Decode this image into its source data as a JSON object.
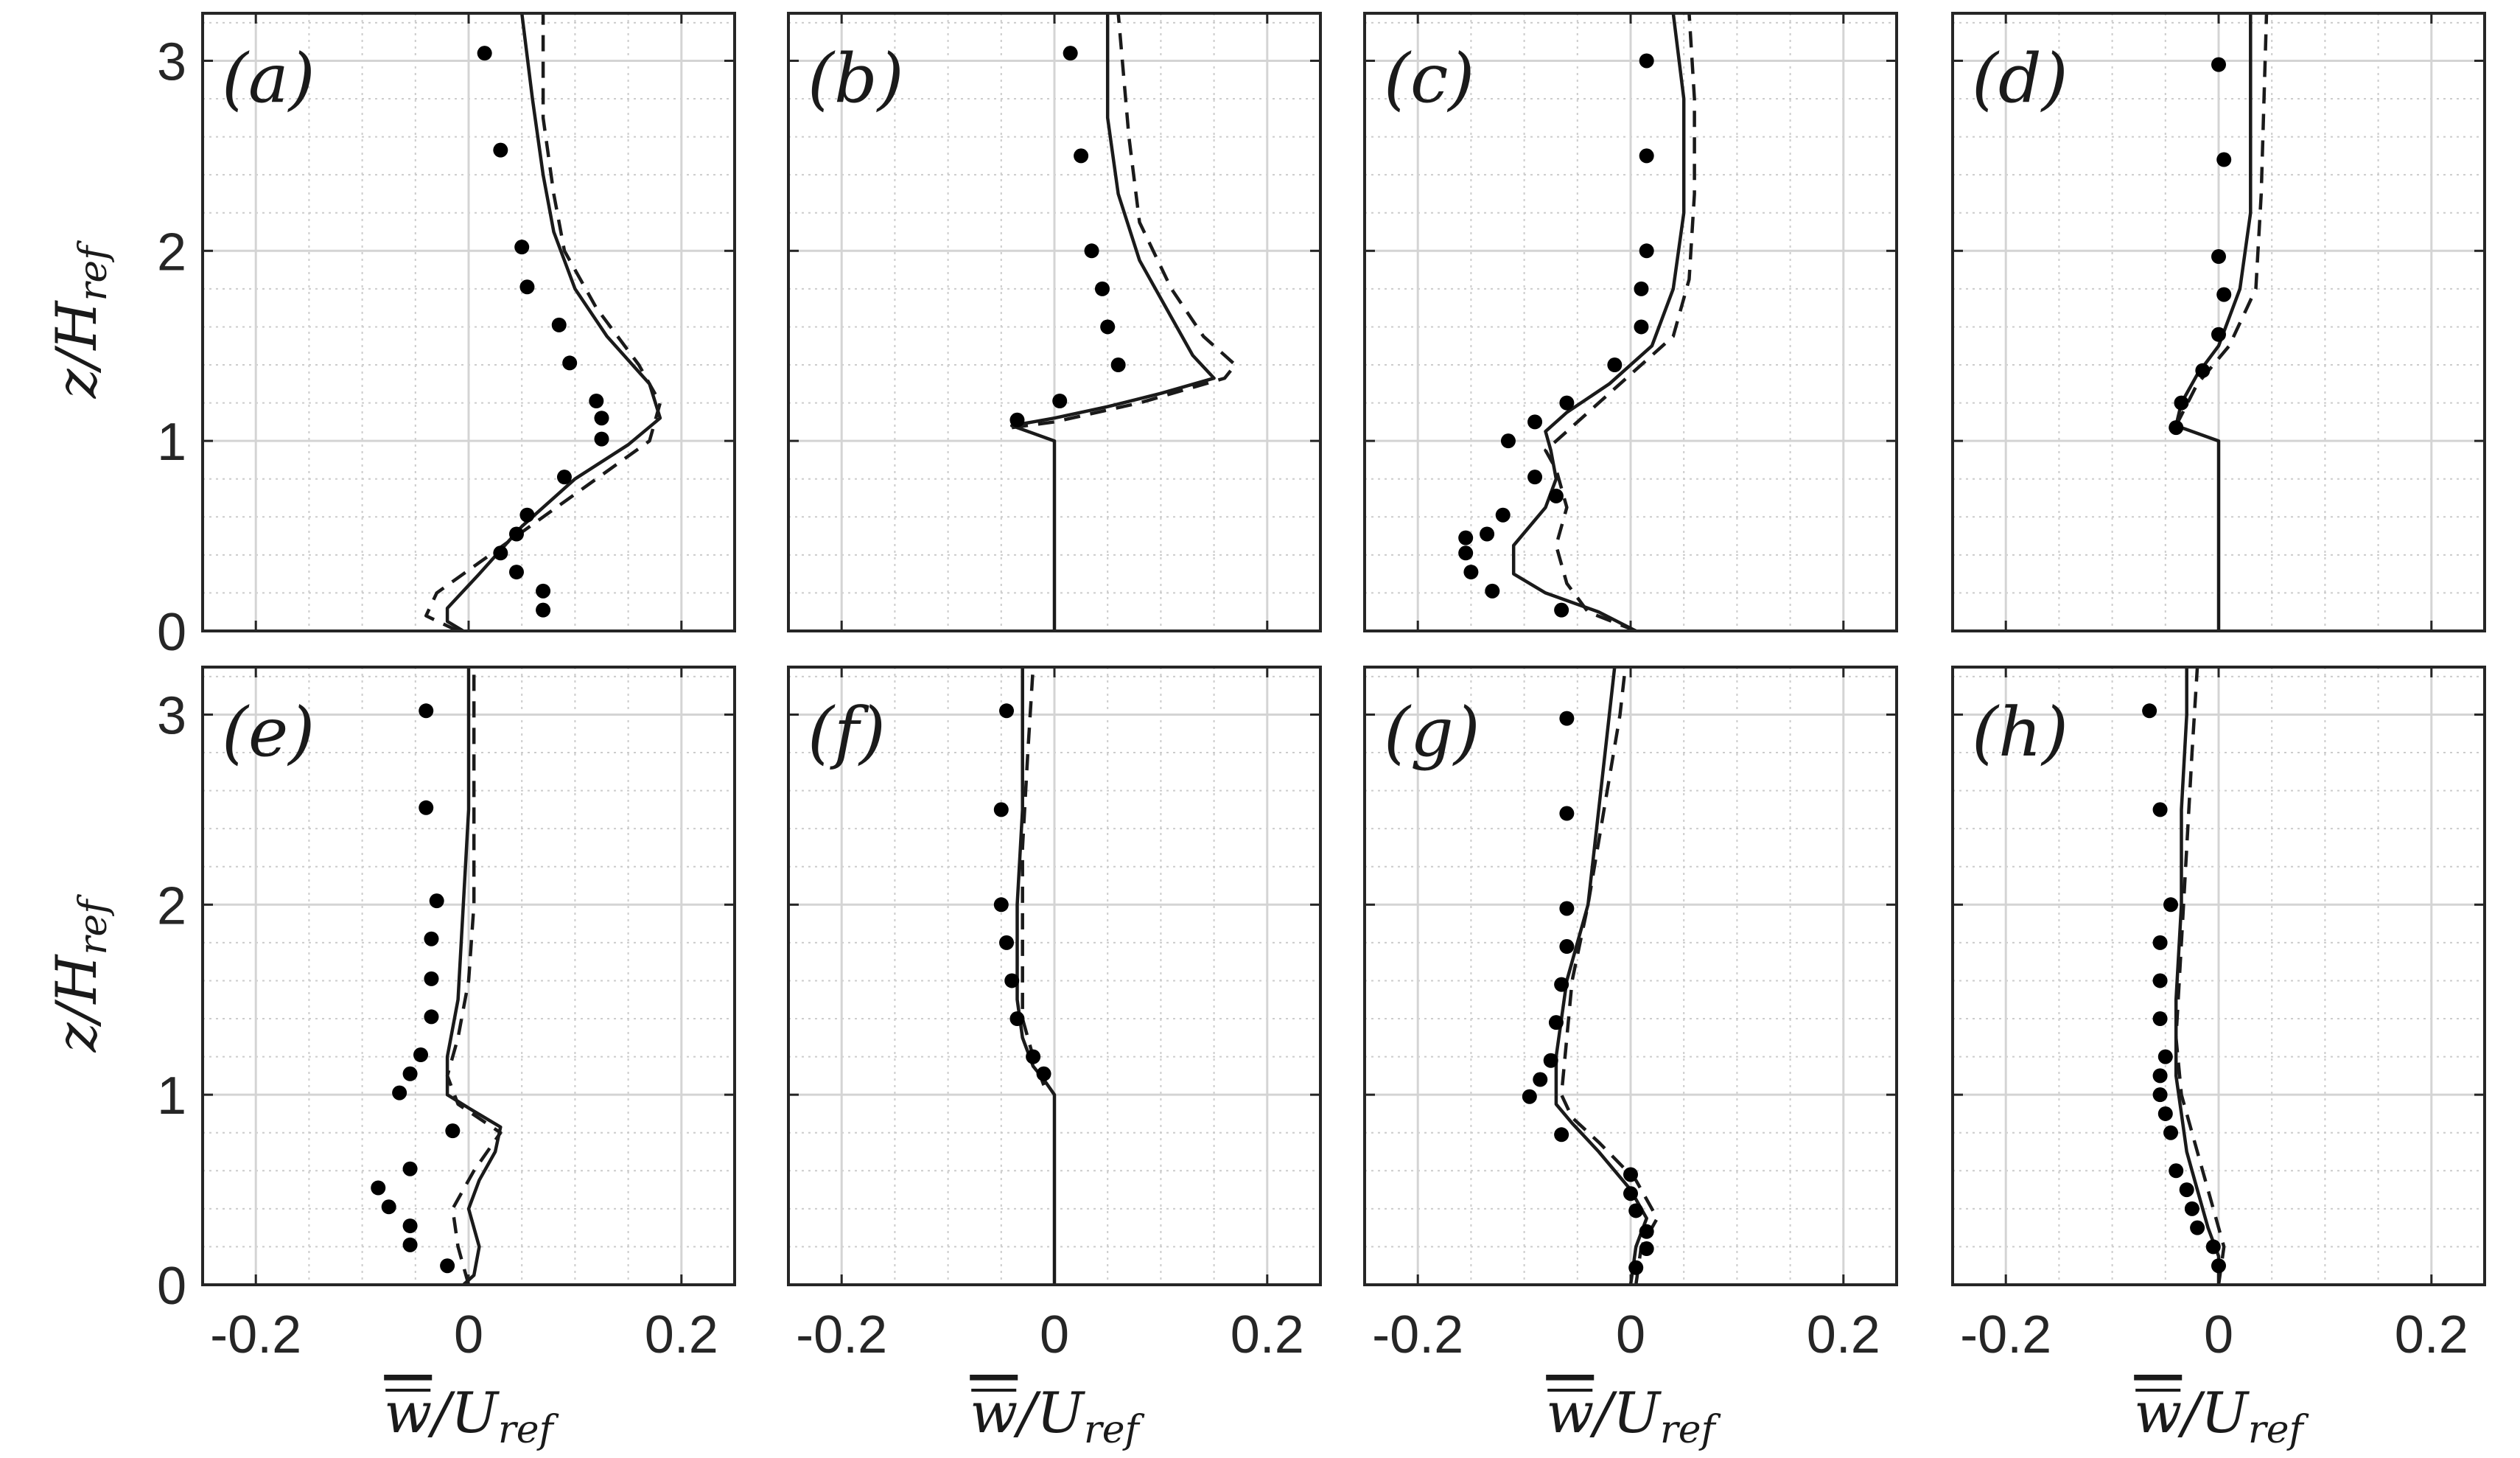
{
  "chart_data": {
    "type": "line",
    "layout": "2x4 grid of vertical profile plots",
    "xlim": [
      -0.25,
      0.25
    ],
    "ylim": [
      0,
      3.25
    ],
    "xticks": [
      "-0.2",
      "0",
      "0.2"
    ],
    "yticks": [
      "0",
      "1",
      "2",
      "3"
    ],
    "xlabel": {
      "main": "w/U",
      "sub": "ref"
    },
    "ylabel": {
      "main": "z/H",
      "sub": "ref"
    },
    "grid": true,
    "minor_grid": true,
    "styles": {
      "solid": "#1a1a1a",
      "dashed": "#1a1a1a",
      "points": "#000000"
    },
    "panels": [
      {
        "label": "(a)",
        "solid": [
          [
            -0.005,
            0
          ],
          [
            -0.02,
            0.05
          ],
          [
            -0.02,
            0.12
          ],
          [
            0.01,
            0.3
          ],
          [
            0.05,
            0.55
          ],
          [
            0.1,
            0.8
          ],
          [
            0.15,
            0.98
          ],
          [
            0.18,
            1.12
          ],
          [
            0.17,
            1.3
          ],
          [
            0.13,
            1.55
          ],
          [
            0.1,
            1.8
          ],
          [
            0.08,
            2.1
          ],
          [
            0.07,
            2.4
          ],
          [
            0.06,
            2.8
          ],
          [
            0.05,
            3.25
          ]
        ],
        "dashed": [
          [
            -0.01,
            0
          ],
          [
            -0.04,
            0.08
          ],
          [
            -0.03,
            0.2
          ],
          [
            0.02,
            0.4
          ],
          [
            0.07,
            0.6
          ],
          [
            0.12,
            0.8
          ],
          [
            0.17,
            1.0
          ],
          [
            0.18,
            1.2
          ],
          [
            0.16,
            1.4
          ],
          [
            0.12,
            1.7
          ],
          [
            0.09,
            2.0
          ],
          [
            0.08,
            2.3
          ],
          [
            0.07,
            2.7
          ],
          [
            0.07,
            3.25
          ]
        ],
        "points": [
          [
            0.015,
            3.04
          ],
          [
            0.03,
            2.53
          ],
          [
            0.05,
            2.02
          ],
          [
            0.055,
            1.81
          ],
          [
            0.085,
            1.61
          ],
          [
            0.095,
            1.41
          ],
          [
            0.12,
            1.21
          ],
          [
            0.125,
            1.12
          ],
          [
            0.125,
            1.01
          ],
          [
            0.09,
            0.81
          ],
          [
            0.055,
            0.61
          ],
          [
            0.045,
            0.51
          ],
          [
            0.03,
            0.41
          ],
          [
            0.045,
            0.31
          ],
          [
            0.07,
            0.21
          ],
          [
            0.07,
            0.11
          ]
        ]
      },
      {
        "label": "(b)",
        "solid": [
          [
            0,
            0
          ],
          [
            0,
            1.0
          ],
          [
            -0.04,
            1.08
          ],
          [
            0,
            1.12
          ],
          [
            0.05,
            1.18
          ],
          [
            0.1,
            1.25
          ],
          [
            0.15,
            1.33
          ],
          [
            0.13,
            1.45
          ],
          [
            0.11,
            1.65
          ],
          [
            0.08,
            1.95
          ],
          [
            0.06,
            2.3
          ],
          [
            0.05,
            2.7
          ],
          [
            0.05,
            3.25
          ]
        ],
        "dashed": [
          [
            -0.04,
            1.07
          ],
          [
            0,
            1.1
          ],
          [
            0.08,
            1.2
          ],
          [
            0.16,
            1.33
          ],
          [
            0.17,
            1.4
          ],
          [
            0.14,
            1.55
          ],
          [
            0.11,
            1.8
          ],
          [
            0.08,
            2.15
          ],
          [
            0.07,
            2.6
          ],
          [
            0.06,
            3.25
          ]
        ],
        "points": [
          [
            0.015,
            3.04
          ],
          [
            0.025,
            2.5
          ],
          [
            0.035,
            2.0
          ],
          [
            0.045,
            1.8
          ],
          [
            0.05,
            1.6
          ],
          [
            0.06,
            1.4
          ],
          [
            0.005,
            1.21
          ],
          [
            -0.035,
            1.11
          ]
        ]
      },
      {
        "label": "(c)",
        "solid": [
          [
            0.005,
            0
          ],
          [
            -0.03,
            0.1
          ],
          [
            -0.08,
            0.2
          ],
          [
            -0.11,
            0.3
          ],
          [
            -0.11,
            0.45
          ],
          [
            -0.08,
            0.65
          ],
          [
            -0.07,
            0.8
          ],
          [
            -0.075,
            0.95
          ],
          [
            -0.08,
            1.05
          ],
          [
            -0.06,
            1.15
          ],
          [
            -0.02,
            1.3
          ],
          [
            0.02,
            1.5
          ],
          [
            0.04,
            1.8
          ],
          [
            0.05,
            2.2
          ],
          [
            0.05,
            2.8
          ],
          [
            0.04,
            3.25
          ]
        ],
        "dashed": [
          [
            0.005,
            0
          ],
          [
            -0.04,
            0.1
          ],
          [
            -0.06,
            0.25
          ],
          [
            -0.07,
            0.45
          ],
          [
            -0.06,
            0.65
          ],
          [
            -0.07,
            0.85
          ],
          [
            -0.08,
            0.95
          ],
          [
            -0.06,
            1.05
          ],
          [
            -0.03,
            1.2
          ],
          [
            0.0,
            1.35
          ],
          [
            0.04,
            1.55
          ],
          [
            0.055,
            1.85
          ],
          [
            0.06,
            2.3
          ],
          [
            0.06,
            2.8
          ],
          [
            0.055,
            3.25
          ]
        ],
        "points": [
          [
            0.015,
            3.0
          ],
          [
            0.015,
            2.5
          ],
          [
            0.015,
            2.0
          ],
          [
            0.01,
            1.8
          ],
          [
            0.01,
            1.6
          ],
          [
            -0.015,
            1.4
          ],
          [
            -0.06,
            1.2
          ],
          [
            -0.09,
            1.1
          ],
          [
            -0.115,
            1.0
          ],
          [
            -0.09,
            0.81
          ],
          [
            -0.07,
            0.71
          ],
          [
            -0.12,
            0.61
          ],
          [
            -0.135,
            0.51
          ],
          [
            -0.155,
            0.49
          ],
          [
            -0.155,
            0.41
          ],
          [
            -0.15,
            0.31
          ],
          [
            -0.13,
            0.21
          ],
          [
            -0.065,
            0.11
          ]
        ]
      },
      {
        "label": "(d)",
        "solid": [
          [
            0,
            0
          ],
          [
            0,
            1.0
          ],
          [
            -0.04,
            1.08
          ],
          [
            -0.035,
            1.2
          ],
          [
            -0.02,
            1.35
          ],
          [
            0.0,
            1.5
          ],
          [
            0.02,
            1.8
          ],
          [
            0.03,
            2.2
          ],
          [
            0.03,
            2.8
          ],
          [
            0.03,
            3.25
          ]
        ],
        "dashed": [
          [
            -0.04,
            1.08
          ],
          [
            -0.02,
            1.3
          ],
          [
            0.01,
            1.5
          ],
          [
            0.035,
            1.8
          ],
          [
            0.04,
            2.3
          ],
          [
            0.045,
            3.25
          ]
        ],
        "points": [
          [
            0.0,
            2.98
          ],
          [
            0.005,
            2.48
          ],
          [
            0.0,
            1.97
          ],
          [
            0.005,
            1.77
          ],
          [
            0.0,
            1.56
          ],
          [
            -0.015,
            1.37
          ],
          [
            -0.035,
            1.2
          ],
          [
            -0.04,
            1.07
          ]
        ]
      },
      {
        "label": "(e)",
        "solid": [
          [
            -0.005,
            0
          ],
          [
            0.005,
            0.05
          ],
          [
            0.01,
            0.2
          ],
          [
            0.0,
            0.4
          ],
          [
            0.01,
            0.55
          ],
          [
            0.025,
            0.7
          ],
          [
            0.03,
            0.83
          ],
          [
            0.0,
            0.93
          ],
          [
            -0.02,
            1.0
          ],
          [
            -0.02,
            1.2
          ],
          [
            -0.01,
            1.5
          ],
          [
            -0.005,
            2.0
          ],
          [
            0.0,
            2.5
          ],
          [
            0.0,
            3.25
          ]
        ],
        "dashed": [
          [
            0,
            0
          ],
          [
            -0.01,
            0.2
          ],
          [
            -0.015,
            0.4
          ],
          [
            0.005,
            0.6
          ],
          [
            0.03,
            0.8
          ],
          [
            -0.01,
            0.95
          ],
          [
            -0.02,
            1.1
          ],
          [
            -0.01,
            1.3
          ],
          [
            0.0,
            1.6
          ],
          [
            0.005,
            2.0
          ],
          [
            0.005,
            2.5
          ],
          [
            0.005,
            3.25
          ]
        ],
        "points": [
          [
            -0.04,
            3.02
          ],
          [
            -0.04,
            2.51
          ],
          [
            -0.03,
            2.02
          ],
          [
            -0.035,
            1.82
          ],
          [
            -0.035,
            1.61
          ],
          [
            -0.035,
            1.41
          ],
          [
            -0.045,
            1.21
          ],
          [
            -0.055,
            1.11
          ],
          [
            -0.065,
            1.01
          ],
          [
            -0.015,
            0.81
          ],
          [
            -0.055,
            0.61
          ],
          [
            -0.085,
            0.51
          ],
          [
            -0.075,
            0.41
          ],
          [
            -0.055,
            0.31
          ],
          [
            -0.055,
            0.21
          ],
          [
            -0.02,
            0.1
          ]
        ]
      },
      {
        "label": "(f)",
        "solid": [
          [
            0,
            0
          ],
          [
            0,
            1.0
          ],
          [
            -0.01,
            1.08
          ],
          [
            -0.02,
            1.15
          ],
          [
            -0.03,
            1.3
          ],
          [
            -0.035,
            1.5
          ],
          [
            -0.035,
            2.0
          ],
          [
            -0.03,
            2.5
          ],
          [
            -0.03,
            3.25
          ]
        ],
        "dashed": [
          [
            -0.01,
            1.05
          ],
          [
            -0.02,
            1.2
          ],
          [
            -0.03,
            1.4
          ],
          [
            -0.03,
            1.8
          ],
          [
            -0.03,
            2.3
          ],
          [
            -0.025,
            2.8
          ],
          [
            -0.02,
            3.25
          ]
        ],
        "points": [
          [
            -0.045,
            3.02
          ],
          [
            -0.05,
            2.5
          ],
          [
            -0.05,
            2.0
          ],
          [
            -0.045,
            1.8
          ],
          [
            -0.04,
            1.6
          ],
          [
            -0.035,
            1.4
          ],
          [
            -0.02,
            1.2
          ],
          [
            -0.01,
            1.11
          ]
        ]
      },
      {
        "label": "(g)",
        "solid": [
          [
            0,
            0
          ],
          [
            0.005,
            0.2
          ],
          [
            0.015,
            0.35
          ],
          [
            0.0,
            0.5
          ],
          [
            -0.03,
            0.7
          ],
          [
            -0.055,
            0.85
          ],
          [
            -0.07,
            0.95
          ],
          [
            -0.07,
            1.2
          ],
          [
            -0.06,
            1.6
          ],
          [
            -0.04,
            2.0
          ],
          [
            -0.03,
            2.5
          ],
          [
            -0.02,
            3.0
          ],
          [
            -0.015,
            3.25
          ]
        ],
        "dashed": [
          [
            0.005,
            0
          ],
          [
            0.01,
            0.2
          ],
          [
            0.025,
            0.35
          ],
          [
            0.005,
            0.55
          ],
          [
            -0.03,
            0.75
          ],
          [
            -0.055,
            0.88
          ],
          [
            -0.065,
            1.0
          ],
          [
            -0.06,
            1.3
          ],
          [
            -0.055,
            1.6
          ],
          [
            -0.04,
            2.0
          ],
          [
            -0.025,
            2.5
          ],
          [
            -0.01,
            3.0
          ],
          [
            -0.005,
            3.25
          ]
        ],
        "points": [
          [
            -0.06,
            2.98
          ],
          [
            -0.06,
            2.48
          ],
          [
            -0.06,
            1.98
          ],
          [
            -0.06,
            1.78
          ],
          [
            -0.065,
            1.58
          ],
          [
            -0.07,
            1.38
          ],
          [
            -0.075,
            1.18
          ],
          [
            -0.085,
            1.08
          ],
          [
            -0.095,
            0.99
          ],
          [
            -0.065,
            0.79
          ],
          [
            0.0,
            0.58
          ],
          [
            0.0,
            0.48
          ],
          [
            0.005,
            0.39
          ],
          [
            0.015,
            0.28
          ],
          [
            0.015,
            0.19
          ],
          [
            0.005,
            0.09
          ]
        ]
      },
      {
        "label": "(h)",
        "solid": [
          [
            0,
            0
          ],
          [
            0,
            0.15
          ],
          [
            -0.01,
            0.3
          ],
          [
            -0.02,
            0.5
          ],
          [
            -0.03,
            0.7
          ],
          [
            -0.035,
            0.9
          ],
          [
            -0.04,
            1.1
          ],
          [
            -0.04,
            1.5
          ],
          [
            -0.035,
            2.0
          ],
          [
            -0.035,
            2.5
          ],
          [
            -0.03,
            3.0
          ],
          [
            -0.03,
            3.25
          ]
        ],
        "dashed": [
          [
            0,
            0
          ],
          [
            0.005,
            0.2
          ],
          [
            -0.005,
            0.4
          ],
          [
            -0.015,
            0.6
          ],
          [
            -0.025,
            0.8
          ],
          [
            -0.035,
            1.0
          ],
          [
            -0.04,
            1.3
          ],
          [
            -0.035,
            1.8
          ],
          [
            -0.03,
            2.3
          ],
          [
            -0.025,
            2.8
          ],
          [
            -0.02,
            3.25
          ]
        ],
        "points": [
          [
            -0.065,
            3.02
          ],
          [
            -0.055,
            2.5
          ],
          [
            -0.045,
            2.0
          ],
          [
            -0.055,
            1.8
          ],
          [
            -0.055,
            1.6
          ],
          [
            -0.055,
            1.4
          ],
          [
            -0.05,
            1.2
          ],
          [
            -0.055,
            1.1
          ],
          [
            -0.055,
            1.0
          ],
          [
            -0.05,
            0.9
          ],
          [
            -0.045,
            0.8
          ],
          [
            -0.04,
            0.6
          ],
          [
            -0.03,
            0.5
          ],
          [
            -0.025,
            0.4
          ],
          [
            -0.02,
            0.3
          ],
          [
            -0.005,
            0.2
          ],
          [
            0.0,
            0.1
          ]
        ]
      }
    ]
  }
}
